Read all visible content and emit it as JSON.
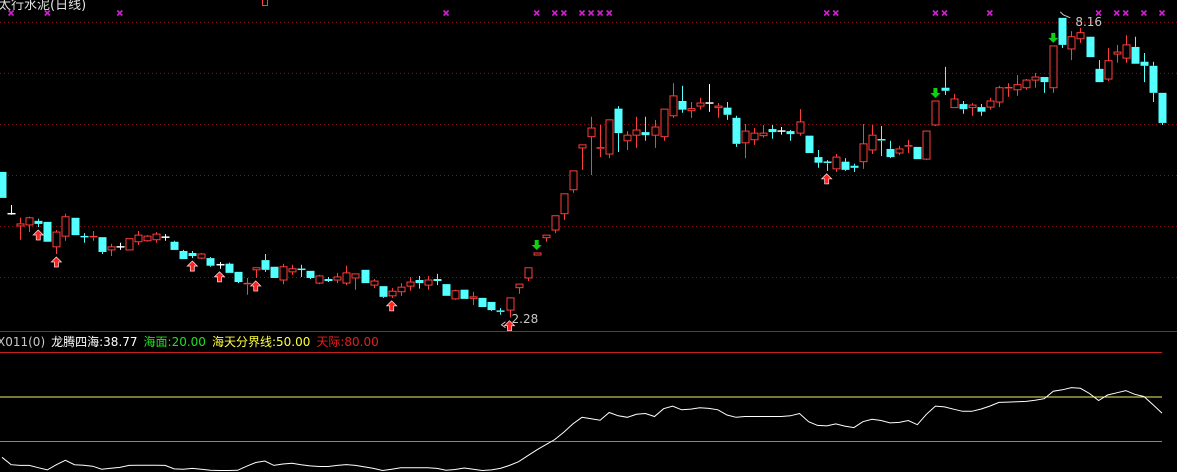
{
  "header": {
    "title": "太行水泥(日线)"
  },
  "indicator_label": {
    "code": "X011(0)",
    "main": "龙腾四海:38.77",
    "sea": "海面:20.00",
    "divide": "海天分界线:50.00",
    "sky": "天际:80.00"
  },
  "colors": {
    "up": "#ff3c3c",
    "down": "#54ffff",
    "flat": "#ffffff",
    "grid": "#8a1010",
    "sky": "#c81e1e",
    "divide": "#f0f060",
    "sea": "#30c030",
    "line": "#ffffff",
    "marker": "#d020d0",
    "buy": "#ff2020",
    "sell": "#10d010"
  },
  "chart_data": [
    {
      "type": "candlestick",
      "ylim": [
        2.04,
        8.51
      ],
      "grid": true,
      "gridlines": [
        3.08,
        4.08,
        5.08,
        6.08,
        7.08,
        8.08
      ],
      "ohlc": [
        [
          5.14,
          5.14,
          4.63,
          4.63
        ],
        [
          4.32,
          4.49,
          4.3,
          4.32
        ],
        [
          4.08,
          4.24,
          3.81,
          4.12
        ],
        [
          4.1,
          4.26,
          3.96,
          4.24
        ],
        [
          4.18,
          4.22,
          4.06,
          4.12
        ],
        [
          4.16,
          4.16,
          3.77,
          3.77
        ],
        [
          3.67,
          4.0,
          3.53,
          3.96
        ],
        [
          3.88,
          4.32,
          3.79,
          4.26
        ],
        [
          4.24,
          4.24,
          3.9,
          3.9
        ],
        [
          3.87,
          3.94,
          3.75,
          3.86
        ],
        [
          3.85,
          3.98,
          3.79,
          3.87
        ],
        [
          3.86,
          3.86,
          3.53,
          3.57
        ],
        [
          3.61,
          3.73,
          3.49,
          3.67
        ],
        [
          3.67,
          3.75,
          3.61,
          3.67
        ],
        [
          3.61,
          3.83,
          3.61,
          3.83
        ],
        [
          3.77,
          3.98,
          3.71,
          3.9
        ],
        [
          3.79,
          3.9,
          3.77,
          3.88
        ],
        [
          3.81,
          3.96,
          3.75,
          3.92
        ],
        [
          3.86,
          3.92,
          3.79,
          3.86
        ],
        [
          3.77,
          3.79,
          3.61,
          3.61
        ],
        [
          3.59,
          3.61,
          3.43,
          3.43
        ],
        [
          3.55,
          3.59,
          3.45,
          3.49
        ],
        [
          3.45,
          3.55,
          3.43,
          3.53
        ],
        [
          3.45,
          3.47,
          3.28,
          3.3
        ],
        [
          3.32,
          3.37,
          3.24,
          3.32
        ],
        [
          3.34,
          3.36,
          3.16,
          3.16
        ],
        [
          3.18,
          3.18,
          2.96,
          2.98
        ],
        [
          2.93,
          3.06,
          2.73,
          2.95
        ],
        [
          3.22,
          3.26,
          3.06,
          3.26
        ],
        [
          3.41,
          3.53,
          3.18,
          3.22
        ],
        [
          3.28,
          3.28,
          3.06,
          3.06
        ],
        [
          3.02,
          3.34,
          2.94,
          3.28
        ],
        [
          3.18,
          3.32,
          3.12,
          3.24
        ],
        [
          3.23,
          3.32,
          3.08,
          3.22
        ],
        [
          3.2,
          3.2,
          3.04,
          3.06
        ],
        [
          2.96,
          3.12,
          2.94,
          3.1
        ],
        [
          3.04,
          3.08,
          2.98,
          3.0
        ],
        [
          3.02,
          3.16,
          2.96,
          3.08
        ],
        [
          2.96,
          3.3,
          2.92,
          3.16
        ],
        [
          3.06,
          3.14,
          2.83,
          3.14
        ],
        [
          3.22,
          3.22,
          2.96,
          2.96
        ],
        [
          2.92,
          3.04,
          2.86,
          3.0
        ],
        [
          2.9,
          2.9,
          2.67,
          2.69
        ],
        [
          2.71,
          2.86,
          2.67,
          2.8
        ],
        [
          2.79,
          2.96,
          2.71,
          2.88
        ],
        [
          2.9,
          3.08,
          2.81,
          2.98
        ],
        [
          3.02,
          3.1,
          2.85,
          2.96
        ],
        [
          2.92,
          3.1,
          2.83,
          3.02
        ],
        [
          3.04,
          3.14,
          2.92,
          3.0
        ],
        [
          2.94,
          2.94,
          2.71,
          2.71
        ],
        [
          2.65,
          2.83,
          2.63,
          2.81
        ],
        [
          2.83,
          2.83,
          2.65,
          2.65
        ],
        [
          2.66,
          2.79,
          2.53,
          2.69
        ],
        [
          2.67,
          2.67,
          2.49,
          2.49
        ],
        [
          2.59,
          2.59,
          2.41,
          2.43
        ],
        [
          2.41,
          2.47,
          2.34,
          2.39
        ],
        [
          2.43,
          2.67,
          2.28,
          2.67
        ],
        [
          2.87,
          2.94,
          2.75,
          2.94
        ],
        [
          3.06,
          3.26,
          3.0,
          3.26
        ],
        [
          3.51,
          3.55,
          3.51,
          3.55
        ],
        [
          3.85,
          3.9,
          3.77,
          3.9
        ],
        [
          4.0,
          4.28,
          3.94,
          4.28
        ],
        [
          4.32,
          4.71,
          4.2,
          4.71
        ],
        [
          4.79,
          5.16,
          4.73,
          5.16
        ],
        [
          5.61,
          5.67,
          5.18,
          5.67
        ],
        [
          5.83,
          6.22,
          5.08,
          6.0
        ],
        [
          5.59,
          6.06,
          5.43,
          5.61
        ],
        [
          5.49,
          6.16,
          5.41,
          6.16
        ],
        [
          6.38,
          6.43,
          5.53,
          5.9
        ],
        [
          5.75,
          5.94,
          5.57,
          5.86
        ],
        [
          5.86,
          6.22,
          5.61,
          5.96
        ],
        [
          5.92,
          6.22,
          5.75,
          5.86
        ],
        [
          5.86,
          6.16,
          5.61,
          6.02
        ],
        [
          5.83,
          6.37,
          5.75,
          6.37
        ],
        [
          6.24,
          6.88,
          6.2,
          6.63
        ],
        [
          6.53,
          6.83,
          6.3,
          6.36
        ],
        [
          6.34,
          6.51,
          6.2,
          6.38
        ],
        [
          6.43,
          6.59,
          6.36,
          6.49
        ],
        [
          6.49,
          6.86,
          6.32,
          6.49
        ],
        [
          6.4,
          6.49,
          6.2,
          6.43
        ],
        [
          6.4,
          6.51,
          6.16,
          6.26
        ],
        [
          6.2,
          6.24,
          5.63,
          5.69
        ],
        [
          5.71,
          6.08,
          5.41,
          5.94
        ],
        [
          5.77,
          6.0,
          5.67,
          5.9
        ],
        [
          5.85,
          6.06,
          5.81,
          5.9
        ],
        [
          5.98,
          6.06,
          5.79,
          5.92
        ],
        [
          5.94,
          6.02,
          5.87,
          5.94
        ],
        [
          5.94,
          5.96,
          5.75,
          5.88
        ],
        [
          5.9,
          6.37,
          5.85,
          6.12
        ],
        [
          5.85,
          5.85,
          5.51,
          5.51
        ],
        [
          5.43,
          5.57,
          5.22,
          5.32
        ],
        [
          5.33,
          5.37,
          5.16,
          5.31
        ],
        [
          5.2,
          5.49,
          5.14,
          5.43
        ],
        [
          5.34,
          5.41,
          5.16,
          5.18
        ],
        [
          5.26,
          5.3,
          5.14,
          5.22
        ],
        [
          5.34,
          6.08,
          5.2,
          5.69
        ],
        [
          5.57,
          6.06,
          5.49,
          5.86
        ],
        [
          5.77,
          6.04,
          5.45,
          5.75
        ],
        [
          5.59,
          5.75,
          5.41,
          5.43
        ],
        [
          5.51,
          5.65,
          5.47,
          5.59
        ],
        [
          5.63,
          5.77,
          5.51,
          5.65
        ],
        [
          5.63,
          5.63,
          5.39,
          5.39
        ],
        [
          5.39,
          5.94,
          5.37,
          5.94
        ],
        [
          6.06,
          6.53,
          6.04,
          6.53
        ],
        [
          6.79,
          7.2,
          6.65,
          6.73
        ],
        [
          6.4,
          6.67,
          6.4,
          6.57
        ],
        [
          6.47,
          6.53,
          6.28,
          6.37
        ],
        [
          6.4,
          6.49,
          6.24,
          6.45
        ],
        [
          6.41,
          6.47,
          6.24,
          6.32
        ],
        [
          6.41,
          6.59,
          6.36,
          6.53
        ],
        [
          6.51,
          6.83,
          6.41,
          6.79
        ],
        [
          6.77,
          6.88,
          6.61,
          6.79
        ],
        [
          6.75,
          7.04,
          6.63,
          6.85
        ],
        [
          6.79,
          6.96,
          6.75,
          6.94
        ],
        [
          6.94,
          7.08,
          6.79,
          7.0
        ],
        [
          7.0,
          7.0,
          6.69,
          6.9
        ],
        [
          6.79,
          7.61,
          6.69,
          7.61
        ],
        [
          8.16,
          8.16,
          7.57,
          7.63
        ],
        [
          7.55,
          7.9,
          7.33,
          7.79
        ],
        [
          7.75,
          7.96,
          7.67,
          7.87
        ],
        [
          7.79,
          7.79,
          7.39,
          7.39
        ],
        [
          7.16,
          7.33,
          6.9,
          6.9
        ],
        [
          6.96,
          7.57,
          6.92,
          7.32
        ],
        [
          7.45,
          7.63,
          7.28,
          7.49
        ],
        [
          7.37,
          7.82,
          7.28,
          7.63
        ],
        [
          7.59,
          7.79,
          7.26,
          7.26
        ],
        [
          7.3,
          7.47,
          6.9,
          7.22
        ],
        [
          7.22,
          7.3,
          6.51,
          6.69
        ],
        [
          6.69,
          6.69,
          6.06,
          6.1
        ]
      ],
      "buy_signals": [
        4,
        6,
        21,
        24,
        28,
        43,
        56,
        91
      ],
      "sell_signals": [
        59,
        103,
        116
      ],
      "top_markers": [
        1,
        5,
        13,
        49,
        59,
        61,
        62,
        64,
        65,
        66,
        67,
        91,
        92,
        103,
        104,
        109,
        121,
        123,
        124,
        126,
        128
      ],
      "annotations": [
        {
          "index": 117,
          "text": "8.16",
          "kind": "high"
        },
        {
          "index": 56,
          "text": "2.28",
          "kind": "low"
        }
      ]
    },
    {
      "type": "line",
      "ylim": [
        -1,
        83
      ],
      "levels": [
        {
          "name": "天际",
          "value": 80
        },
        {
          "name": "海天分界线",
          "value": 50
        },
        {
          "name": "海面",
          "value": 20
        }
      ],
      "series": [
        {
          "name": "龙腾四海",
          "values": [
            9,
            4,
            3.5,
            3.5,
            2,
            0.5,
            4,
            7,
            4,
            3.7,
            3,
            1,
            1.6,
            2.2,
            3.5,
            3.7,
            3.7,
            3.7,
            3.5,
            1.2,
            1,
            1.5,
            1,
            0.2,
            0.1,
            0.1,
            0.2,
            3,
            5.5,
            6.5,
            3.5,
            4.5,
            5,
            4,
            3.2,
            2.8,
            2.8,
            3.5,
            4.1,
            3.5,
            2.5,
            1.5,
            0.1,
            1,
            2,
            2,
            2,
            2,
            1.5,
            0.3,
            0.8,
            1.8,
            1,
            0.1,
            0.5,
            1.5,
            3.5,
            6,
            10,
            14,
            17.5,
            21,
            26,
            31.5,
            36,
            35,
            34,
            39.2,
            37,
            36,
            38,
            38.5,
            36.5,
            41.8,
            43.5,
            41,
            41.5,
            42.4,
            42,
            41,
            37.5,
            36,
            36.5,
            36.5,
            36.5,
            36.5,
            36.5,
            37,
            38.5,
            33,
            30.5,
            30.2,
            31.5,
            30,
            29,
            33,
            34.6,
            33.8,
            32.2,
            32.5,
            33.8,
            31,
            38,
            43.5,
            43,
            41.4,
            40,
            40,
            41.5,
            43.5,
            46,
            46.2,
            46.4,
            46.7,
            47.5,
            48.5,
            53.6,
            54.5,
            56,
            55.5,
            52,
            47.3,
            51,
            52.5,
            54,
            51.5,
            50,
            44.5,
            38.77
          ]
        }
      ]
    }
  ]
}
